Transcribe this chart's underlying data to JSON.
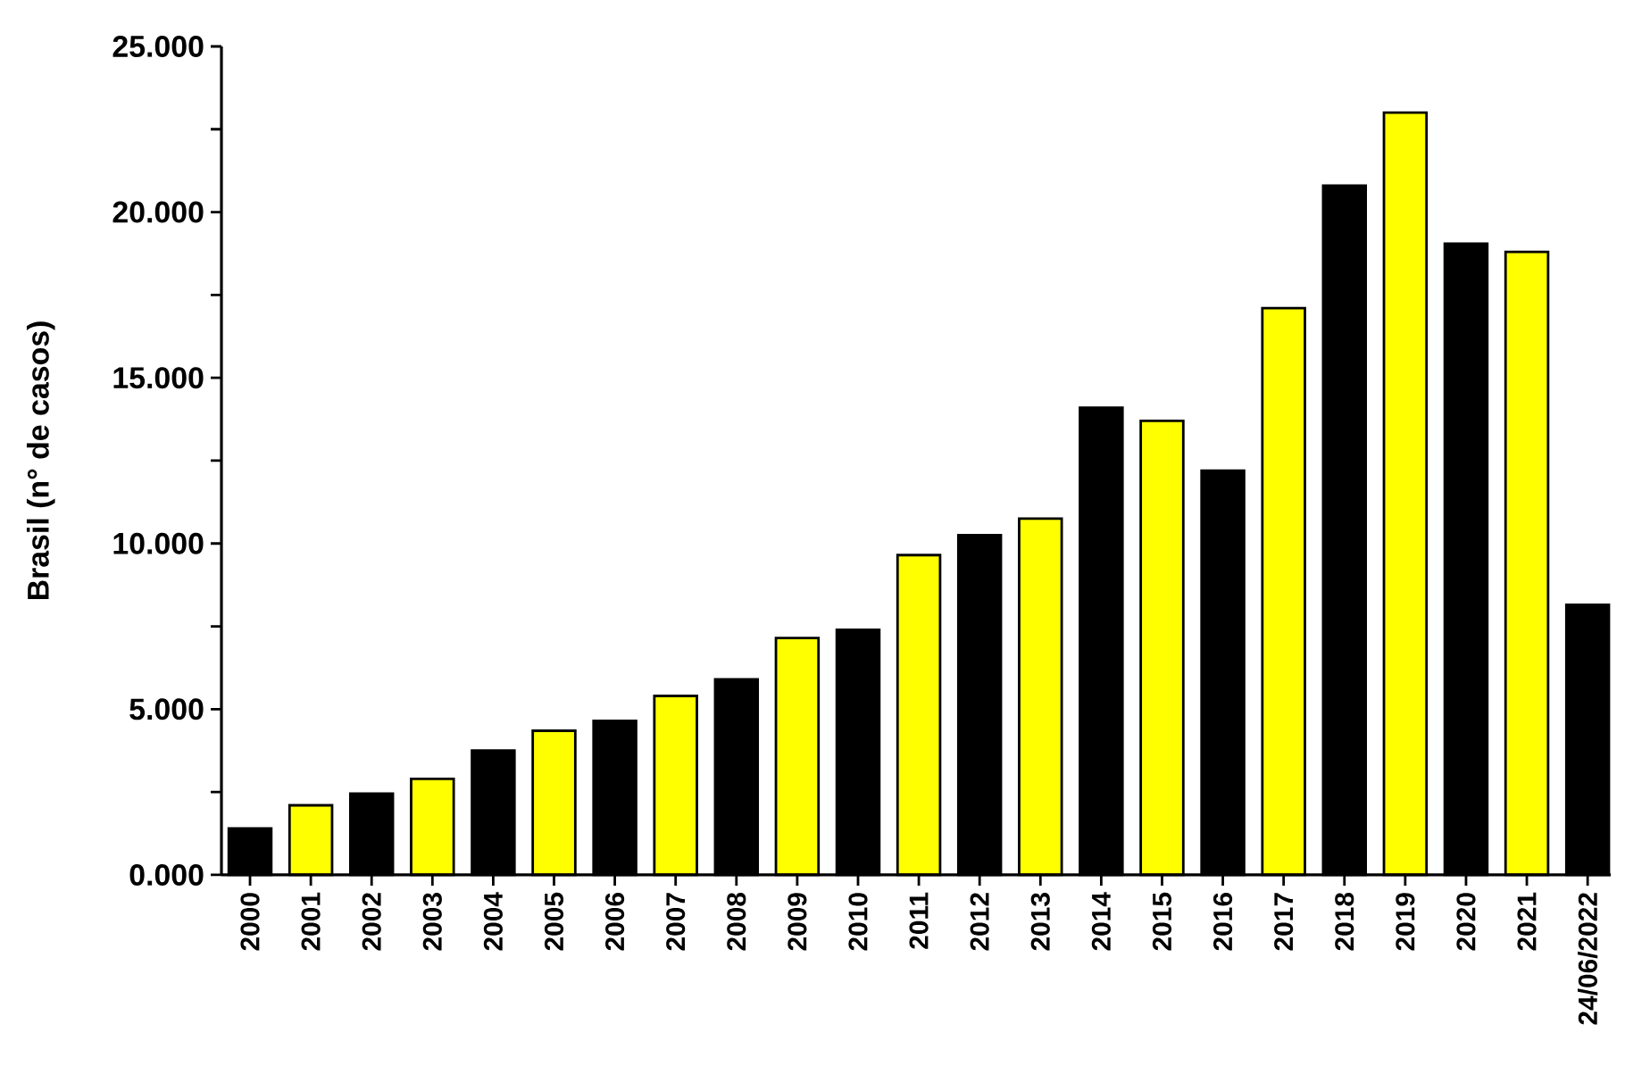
{
  "chart_data": {
    "type": "bar",
    "ylabel": "Brasil (n° de casos)",
    "categories": [
      "2000",
      "2001",
      "2002",
      "2003",
      "2004",
      "2005",
      "2006",
      "2007",
      "2008",
      "2009",
      "2010",
      "2011",
      "2012",
      "2013",
      "2014",
      "2015",
      "2016",
      "2017",
      "2018",
      "2019",
      "2020",
      "2021",
      "24/06/2022"
    ],
    "values": [
      1.4,
      2.1,
      2.45,
      2.9,
      3.75,
      4.35,
      4.65,
      5.4,
      5.9,
      7.15,
      7.4,
      9.65,
      10.25,
      10.75,
      14.1,
      13.7,
      12.2,
      17.1,
      20.8,
      23.0,
      19.05,
      18.8,
      8.15
    ],
    "colors": [
      "#000000",
      "#ffff00",
      "#000000",
      "#ffff00",
      "#000000",
      "#ffff00",
      "#000000",
      "#ffff00",
      "#000000",
      "#ffff00",
      "#000000",
      "#ffff00",
      "#000000",
      "#ffff00",
      "#000000",
      "#ffff00",
      "#000000",
      "#ffff00",
      "#000000",
      "#ffff00",
      "#000000",
      "#ffff00",
      "#000000"
    ],
    "ylim": [
      0,
      25
    ],
    "yticks": [
      {
        "value": 0,
        "label": "0.000"
      },
      {
        "value": 2.5,
        "label": null
      },
      {
        "value": 5,
        "label": "5.000"
      },
      {
        "value": 7.5,
        "label": null
      },
      {
        "value": 10,
        "label": "10.000"
      },
      {
        "value": 12.5,
        "label": null
      },
      {
        "value": 15,
        "label": "15.000"
      },
      {
        "value": 17.5,
        "label": null
      },
      {
        "value": 20,
        "label": "20.000"
      },
      {
        "value": 22.5,
        "label": null
      },
      {
        "value": 25,
        "label": "25.000"
      }
    ],
    "grid": false
  }
}
